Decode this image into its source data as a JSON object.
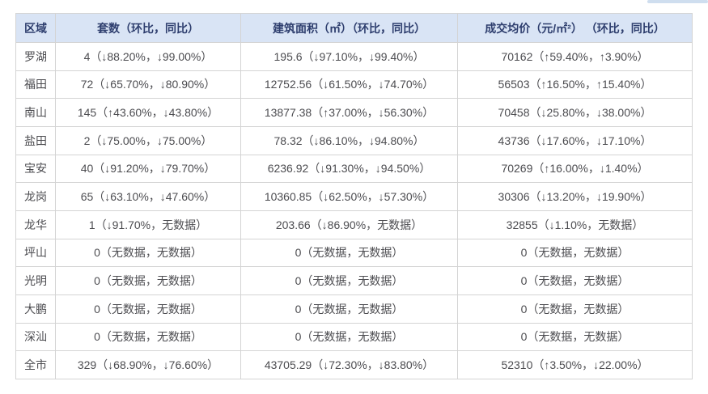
{
  "theme": {
    "page_bg": "#ffffff",
    "header_bg": "#d9e4f5",
    "header_text": "#2e3e6e",
    "body_text": "#4c4c50",
    "border_color": "#d4d4d4",
    "top_bar_color": "#cfdeef"
  },
  "chart_data": {
    "type": "table",
    "title": "",
    "columns": [
      "区域",
      "套数（环比，同比）",
      "建筑面积（㎡）（环比，同比）",
      "成交均价（元/㎡²） （环比，同比）"
    ],
    "rows": [
      [
        "罗湖",
        "4（↓88.20%，↓99.00%）",
        "195.6（↓97.10%，↓99.40%）",
        "70162（↑59.40%，↑3.90%）"
      ],
      [
        "福田",
        "72（↓65.70%，↓80.90%）",
        "12752.56（↓61.50%，↓74.70%）",
        "56503（↑16.50%，↑15.40%）"
      ],
      [
        "南山",
        "145（↑43.60%，↓43.80%）",
        "13877.38（↑37.00%，↓56.30%）",
        "70458（↓25.80%，↓38.00%）"
      ],
      [
        "盐田",
        "2（↓75.00%，↓75.00%）",
        "78.32（↓86.10%，↓94.80%）",
        "43736（↓17.60%，↓17.10%）"
      ],
      [
        "宝安",
        "40（↓91.20%，↓79.70%）",
        "6236.92（↓91.30%，↓94.50%）",
        "70269（↑16.00%，↓1.40%）"
      ],
      [
        "龙岗",
        "65（↓63.10%，↓47.60%）",
        "10360.85（↓62.50%，↓57.30%）",
        "30306（↓13.20%，↓19.90%）"
      ],
      [
        "龙华",
        "1（↓91.70%，无数据）",
        "203.66（↓86.90%，无数据）",
        "32855（↓1.10%，无数据）"
      ],
      [
        "坪山",
        "0（无数据，无数据）",
        "0（无数据，无数据）",
        "0（无数据，无数据）"
      ],
      [
        "光明",
        "0（无数据，无数据）",
        "0（无数据，无数据）",
        "0（无数据，无数据）"
      ],
      [
        "大鹏",
        "0（无数据，无数据）",
        "0（无数据，无数据）",
        "0（无数据，无数据）"
      ],
      [
        "深汕",
        "0（无数据，无数据）",
        "0（无数据，无数据）",
        "0（无数据，无数据）"
      ],
      [
        "全市",
        "329（↓68.90%，↓76.60%）",
        "43705.29（↓72.30%，↓83.80%）",
        "52310（↑3.50%，↓22.00%）"
      ]
    ]
  }
}
